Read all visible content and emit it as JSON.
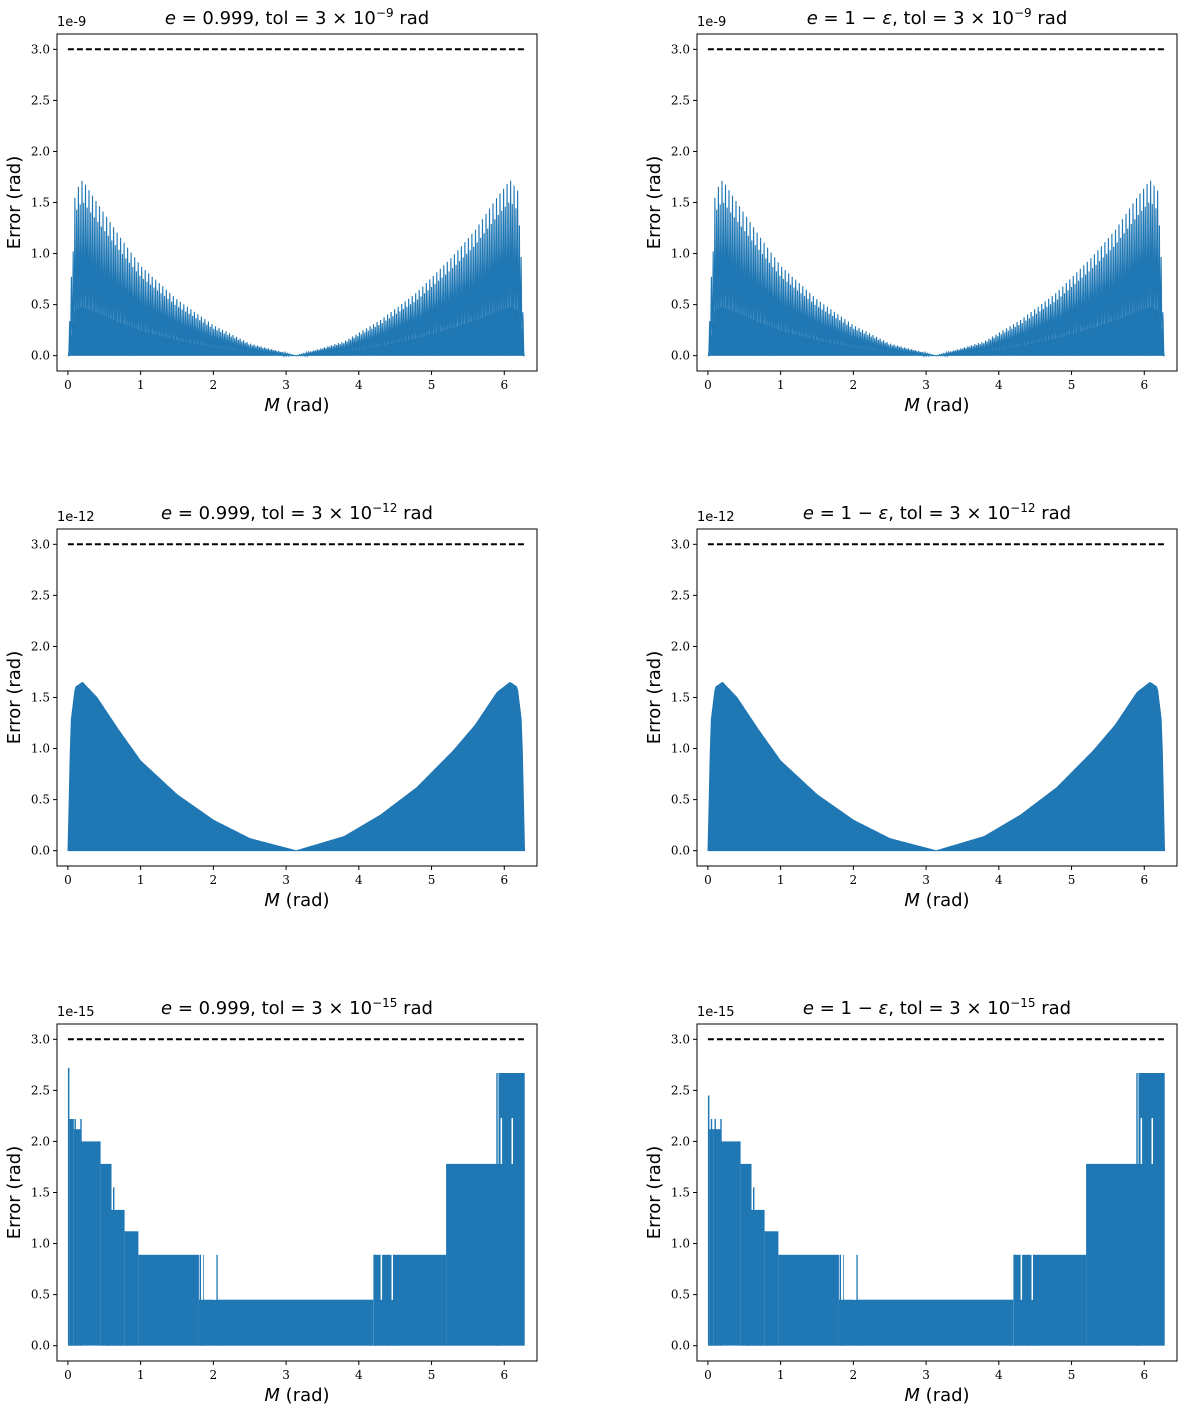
{
  "figure": {
    "layout": "3 rows x 2 columns",
    "series_color": "#1f77b4",
    "tolerance_line_color": "#000000"
  },
  "chart_data": [
    {
      "type": "area",
      "title_parts": [
        "e",
        " = 0.999, tol  = 3 × 10",
        "−9",
        " rad"
      ],
      "offset_text": "1e-9",
      "xlabel_parts": [
        "M",
        " (rad)"
      ],
      "ylabel": "Error (rad)",
      "xlim": [
        -0.15,
        6.45
      ],
      "ylim": [
        -0.15,
        3.15
      ],
      "xticks": [
        0,
        1,
        2,
        3,
        4,
        5,
        6
      ],
      "xtick_labels": [
        "0",
        "1",
        "2",
        "3",
        "4",
        "5",
        "6"
      ],
      "yticks": [
        0,
        0.5,
        1,
        1.5,
        2,
        2.5,
        3
      ],
      "ytick_labels": [
        "0.0",
        "0.5",
        "1.0",
        "1.5",
        "2.0",
        "2.5",
        "3.0"
      ],
      "tolerance": 3.0,
      "series": [
        {
          "name": "error",
          "mode": "spikes",
          "style": "9",
          "envelope": {
            "M": [
              0,
              0.1,
              0.2,
              0.4,
              0.7,
              1.0,
              1.5,
              2.0,
              2.5,
              3.14,
              3.8,
              4.3,
              4.8,
              5.3,
              5.6,
              5.9,
              6.08,
              6.2,
              6.28
            ],
            "error": [
              0.0,
              1.6,
              1.72,
              1.5,
              1.18,
              0.88,
              0.55,
              0.3,
              0.12,
              0.0,
              0.14,
              0.35,
              0.62,
              0.98,
              1.23,
              1.55,
              1.72,
              1.6,
              0.0
            ]
          }
        }
      ]
    },
    {
      "type": "area",
      "title_parts": [
        "e",
        " = 1 − ",
        "ε",
        ", tol  = 3 × 10",
        "−9",
        " rad"
      ],
      "offset_text": "1e-9",
      "xlabel_parts": [
        "M",
        " (rad)"
      ],
      "ylabel": "Error (rad)",
      "xlim": [
        -0.15,
        6.45
      ],
      "ylim": [
        -0.15,
        3.15
      ],
      "xticks": [
        0,
        1,
        2,
        3,
        4,
        5,
        6
      ],
      "xtick_labels": [
        "0",
        "1",
        "2",
        "3",
        "4",
        "5",
        "6"
      ],
      "yticks": [
        0,
        0.5,
        1,
        1.5,
        2,
        2.5,
        3
      ],
      "ytick_labels": [
        "0.0",
        "0.5",
        "1.0",
        "1.5",
        "2.0",
        "2.5",
        "3.0"
      ],
      "tolerance": 3.0,
      "series": [
        {
          "name": "error",
          "mode": "spikes",
          "style": "9",
          "envelope": {
            "M": [
              0,
              0.1,
              0.2,
              0.4,
              0.7,
              1.0,
              1.5,
              2.0,
              2.5,
              3.14,
              3.8,
              4.3,
              4.8,
              5.3,
              5.6,
              5.9,
              6.08,
              6.2,
              6.28
            ],
            "error": [
              0.0,
              1.6,
              1.72,
              1.5,
              1.18,
              0.88,
              0.55,
              0.3,
              0.12,
              0.0,
              0.14,
              0.35,
              0.62,
              0.98,
              1.23,
              1.55,
              1.72,
              1.6,
              0.0
            ]
          }
        }
      ]
    },
    {
      "type": "area",
      "title_parts": [
        "e",
        " = 0.999, tol  = 3 × 10",
        "−12",
        " rad"
      ],
      "offset_text": "1e-12",
      "xlabel_parts": [
        "M",
        " (rad)"
      ],
      "ylabel": "Error (rad)",
      "xlim": [
        -0.15,
        6.45
      ],
      "ylim": [
        -0.15,
        3.15
      ],
      "xticks": [
        0,
        1,
        2,
        3,
        4,
        5,
        6
      ],
      "xtick_labels": [
        "0",
        "1",
        "2",
        "3",
        "4",
        "5",
        "6"
      ],
      "yticks": [
        0,
        0.5,
        1,
        1.5,
        2,
        2.5,
        3
      ],
      "ytick_labels": [
        "0.0",
        "0.5",
        "1.0",
        "1.5",
        "2.0",
        "2.5",
        "3.0"
      ],
      "tolerance": 3.0,
      "series": [
        {
          "name": "error",
          "mode": "dense",
          "style": "12",
          "envelope": {
            "M": [
              0,
              0.04,
              0.1,
              0.2,
              0.4,
              0.7,
              1.0,
              1.5,
              2.0,
              2.5,
              3.14,
              3.8,
              4.3,
              4.8,
              5.3,
              5.6,
              5.9,
              6.08,
              6.18,
              6.24,
              6.28
            ],
            "error": [
              0.0,
              1.25,
              1.6,
              1.65,
              1.5,
              1.18,
              0.88,
              0.55,
              0.3,
              0.12,
              0.0,
              0.14,
              0.35,
              0.62,
              0.98,
              1.23,
              1.55,
              1.65,
              1.6,
              1.25,
              0.0
            ]
          }
        }
      ]
    },
    {
      "type": "area",
      "title_parts": [
        "e",
        " = 1 − ",
        "ε",
        ", tol  = 3 × 10",
        "−12",
        " rad"
      ],
      "offset_text": "1e-12",
      "xlabel_parts": [
        "M",
        " (rad)"
      ],
      "ylabel": "Error (rad)",
      "xlim": [
        -0.15,
        6.45
      ],
      "ylim": [
        -0.15,
        3.15
      ],
      "xticks": [
        0,
        1,
        2,
        3,
        4,
        5,
        6
      ],
      "xtick_labels": [
        "0",
        "1",
        "2",
        "3",
        "4",
        "5",
        "6"
      ],
      "yticks": [
        0,
        0.5,
        1,
        1.5,
        2,
        2.5,
        3
      ],
      "ytick_labels": [
        "0.0",
        "0.5",
        "1.0",
        "1.5",
        "2.0",
        "2.5",
        "3.0"
      ],
      "tolerance": 3.0,
      "series": [
        {
          "name": "error",
          "mode": "dense",
          "style": "12",
          "envelope": {
            "M": [
              0,
              0.04,
              0.1,
              0.2,
              0.4,
              0.7,
              1.0,
              1.5,
              2.0,
              2.5,
              3.14,
              3.8,
              4.3,
              4.8,
              5.3,
              5.6,
              5.9,
              6.08,
              6.18,
              6.24,
              6.28
            ],
            "error": [
              0.0,
              1.25,
              1.6,
              1.65,
              1.5,
              1.18,
              0.88,
              0.55,
              0.3,
              0.12,
              0.0,
              0.14,
              0.35,
              0.62,
              0.98,
              1.23,
              1.55,
              1.65,
              1.6,
              1.25,
              0.0
            ]
          }
        }
      ]
    },
    {
      "type": "area",
      "title_parts": [
        "e",
        " = 0.999, tol  = 3 × 10",
        "−15",
        " rad"
      ],
      "offset_text": "1e-15",
      "xlabel_parts": [
        "M",
        " (rad)"
      ],
      "ylabel": "Error (rad)",
      "xlim": [
        -0.15,
        6.45
      ],
      "ylim": [
        -0.15,
        3.15
      ],
      "xticks": [
        0,
        1,
        2,
        3,
        4,
        5,
        6
      ],
      "xtick_labels": [
        "0",
        "1",
        "2",
        "3",
        "4",
        "5",
        "6"
      ],
      "yticks": [
        0,
        0.5,
        1,
        1.5,
        2,
        2.5,
        3
      ],
      "ytick_labels": [
        "0.0",
        "0.5",
        "1.0",
        "1.5",
        "2.0",
        "2.5",
        "3.0"
      ],
      "tolerance": 3.0,
      "series": [
        {
          "name": "error",
          "mode": "steps",
          "style": "15",
          "base": [
            [
              0.0,
              0.02,
              2.72
            ],
            [
              0.02,
              0.08,
              2.22
            ],
            [
              0.08,
              0.18,
              2.12
            ],
            [
              0.18,
              0.45,
              2.0
            ],
            [
              0.45,
              0.6,
              1.78
            ],
            [
              0.6,
              0.78,
              1.33
            ],
            [
              0.78,
              0.97,
              1.12
            ],
            [
              0.97,
              1.8,
              0.89
            ],
            [
              1.8,
              4.2,
              0.45
            ],
            [
              4.2,
              5.2,
              0.89
            ],
            [
              5.2,
              5.92,
              1.78
            ],
            [
              5.92,
              6.28,
              2.67
            ]
          ],
          "spikes": [
            [
              0.05,
              2.22
            ],
            [
              0.1,
              2.22
            ],
            [
              0.18,
              2.22
            ],
            [
              0.55,
              1.78
            ],
            [
              0.63,
              1.55
            ],
            [
              0.72,
              1.33
            ],
            [
              0.8,
              1.12
            ],
            [
              0.93,
              1.12
            ],
            [
              1.82,
              0.89
            ],
            [
              1.86,
              0.89
            ],
            [
              2.05,
              0.89
            ],
            [
              4.22,
              0.89
            ],
            [
              4.3,
              0.89
            ],
            [
              4.4,
              0.89
            ],
            [
              4.48,
              0.89
            ],
            [
              4.55,
              0.89
            ],
            [
              5.9,
              2.67
            ]
          ],
          "gaps": [
            [
              1.84,
              1.86,
              0.45
            ],
            [
              2.0,
              2.04,
              0.45
            ],
            [
              4.3,
              4.32,
              0.45
            ],
            [
              4.45,
              4.47,
              0.45
            ],
            [
              5.95,
              5.97,
              1.78
            ],
            [
              6.1,
              6.12,
              1.78
            ]
          ]
        }
      ]
    },
    {
      "type": "area",
      "title_parts": [
        "e",
        " = 1 − ",
        "ε",
        ", tol  = 3 × 10",
        "−15",
        " rad"
      ],
      "offset_text": "1e-15",
      "xlabel_parts": [
        "M",
        " (rad)"
      ],
      "ylabel": "Error (rad)",
      "xlim": [
        -0.15,
        6.45
      ],
      "ylim": [
        -0.15,
        3.15
      ],
      "xticks": [
        0,
        1,
        2,
        3,
        4,
        5,
        6
      ],
      "xtick_labels": [
        "0",
        "1",
        "2",
        "3",
        "4",
        "5",
        "6"
      ],
      "yticks": [
        0,
        0.5,
        1,
        1.5,
        2,
        2.5,
        3
      ],
      "ytick_labels": [
        "0.0",
        "0.5",
        "1.0",
        "1.5",
        "2.0",
        "2.5",
        "3.0"
      ],
      "tolerance": 3.0,
      "series": [
        {
          "name": "error",
          "mode": "steps",
          "style": "15",
          "base": [
            [
              0.0,
              0.02,
              2.45
            ],
            [
              0.02,
              0.08,
              2.12
            ],
            [
              0.08,
              0.18,
              2.12
            ],
            [
              0.18,
              0.45,
              2.0
            ],
            [
              0.45,
              0.6,
              1.78
            ],
            [
              0.6,
              0.78,
              1.33
            ],
            [
              0.78,
              0.97,
              1.12
            ],
            [
              0.97,
              1.8,
              0.89
            ],
            [
              1.8,
              4.2,
              0.45
            ],
            [
              4.2,
              5.2,
              0.89
            ],
            [
              5.2,
              5.92,
              1.78
            ],
            [
              5.92,
              6.28,
              2.67
            ]
          ],
          "spikes": [
            [
              0.05,
              2.22
            ],
            [
              0.1,
              2.22
            ],
            [
              0.18,
              2.22
            ],
            [
              0.55,
              1.78
            ],
            [
              0.63,
              1.55
            ],
            [
              0.72,
              1.33
            ],
            [
              0.8,
              1.12
            ],
            [
              0.93,
              1.12
            ],
            [
              1.82,
              0.89
            ],
            [
              1.86,
              0.89
            ],
            [
              2.05,
              0.89
            ],
            [
              4.22,
              0.89
            ],
            [
              4.3,
              0.89
            ],
            [
              4.4,
              0.89
            ],
            [
              4.48,
              0.89
            ],
            [
              4.55,
              0.89
            ],
            [
              5.9,
              2.67
            ]
          ],
          "gaps": [
            [
              1.84,
              1.86,
              0.45
            ],
            [
              2.0,
              2.04,
              0.45
            ],
            [
              4.3,
              4.32,
              0.45
            ],
            [
              4.45,
              4.47,
              0.45
            ],
            [
              5.95,
              5.97,
              1.78
            ],
            [
              6.1,
              6.12,
              1.78
            ]
          ]
        }
      ]
    }
  ]
}
